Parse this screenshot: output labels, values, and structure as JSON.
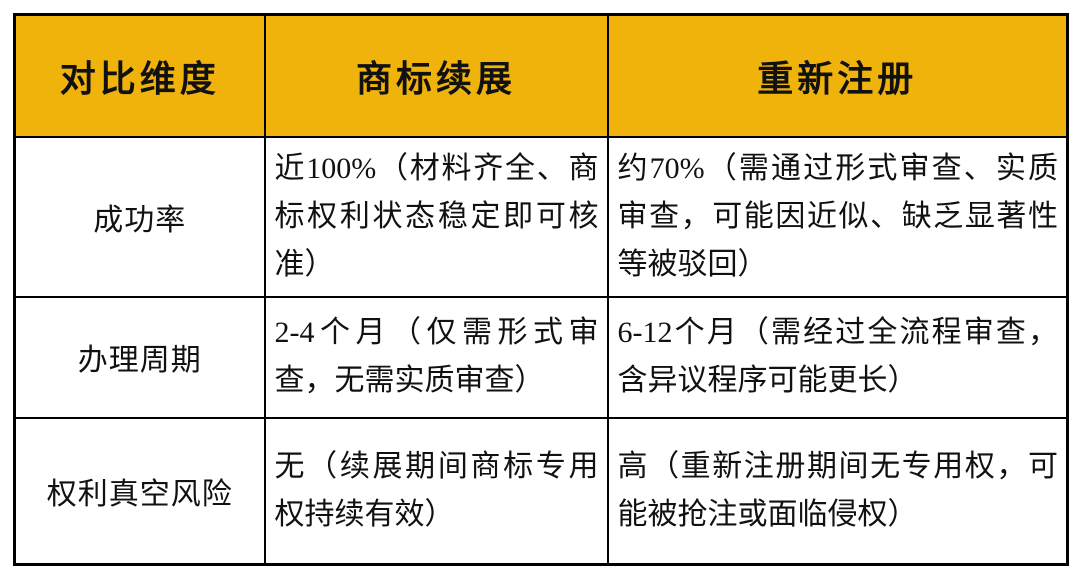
{
  "table": {
    "headers": [
      "对比维度",
      "商标续展",
      "重新注册"
    ],
    "rows": [
      {
        "dimension": "成功率",
        "renewal": "近100%（材料齐全、商标权利状态稳定即可核准）",
        "reregistration": "约70%（需通过形式审查、实质审查，可能因近似、缺乏显著性等被驳回）"
      },
      {
        "dimension": "办理周期",
        "renewal": "2-4个月（仅需形式审查，无需实质审查）",
        "reregistration": "6-12个月（需经过全流程审查，含异议程序可能更长）"
      },
      {
        "dimension": "权利真空风险",
        "renewal": "无（续展期间商标专用权持续有效）",
        "reregistration": "高（重新注册期间无专用权，可能被抢注或面临侵权）"
      }
    ],
    "colors": {
      "header_bg": "#F0B30C",
      "border": "#000000",
      "text": "#111111",
      "background": "#FFFFFF"
    }
  }
}
